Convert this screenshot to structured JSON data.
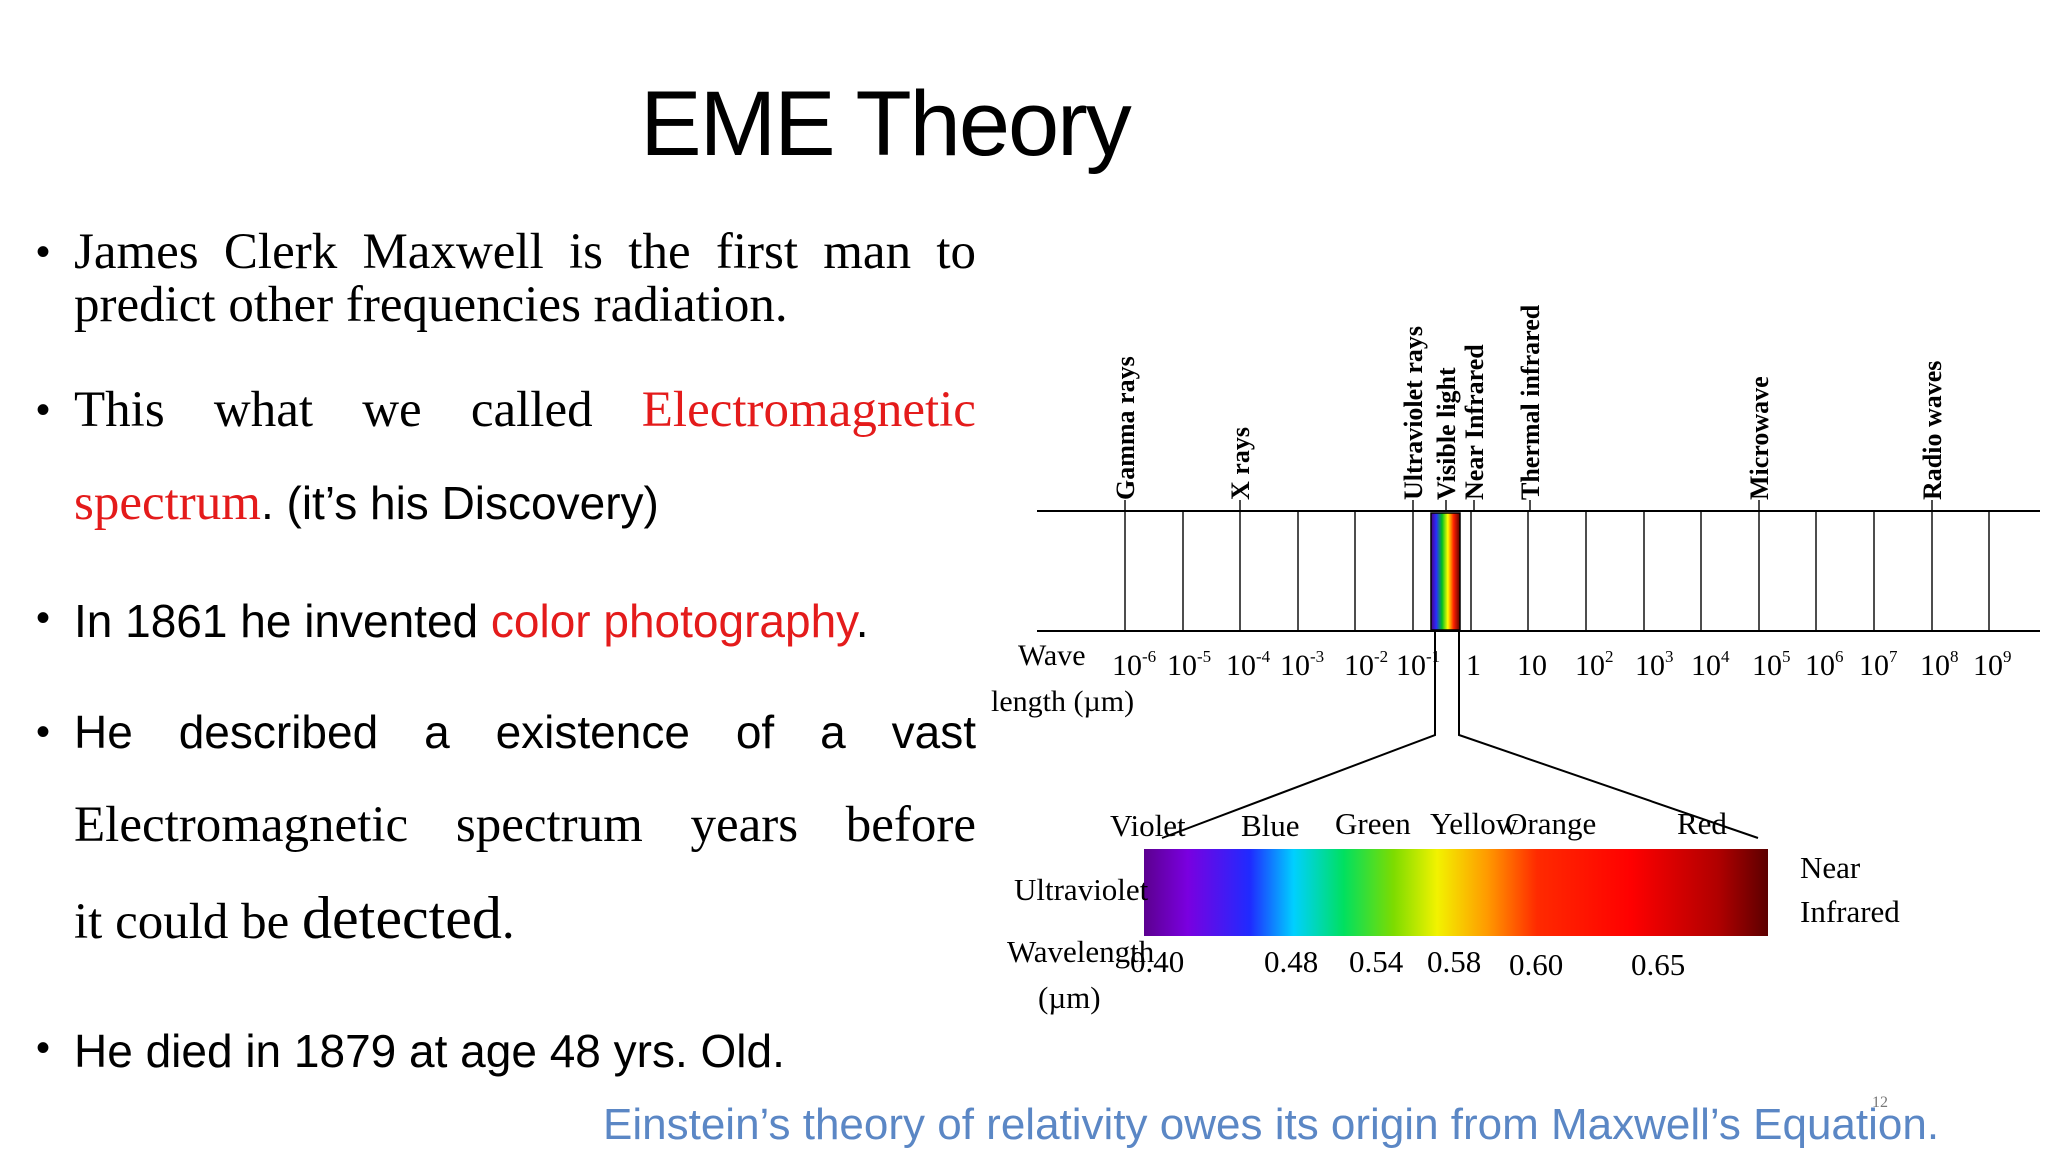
{
  "slide": {
    "title": "EME Theory",
    "page_number": "12",
    "footer": "Einstein’s theory of relativity owes its origin from Maxwell’s Equation."
  },
  "bullets": {
    "b1_line1": "James Clerk Maxwell is the first man to",
    "b1_line2": "predict other frequencies radiation.",
    "b2_pre": "This what we called",
    "b2_red1": "Electromagnetic",
    "b2_red2": "spectrum",
    "b2_post": ". (it’s his Discovery)",
    "b3_pre": "In 1861 he invented",
    "b3_red": "color photography",
    "b3_post": ".",
    "b4_line1": "He described a existence of a vast",
    "b4_line2": "Electromagnetic spectrum years before",
    "b4_line3a": "it could be",
    "b4_line3b": "detected",
    "b4_line3c": ".",
    "b5": "He died in 1879 at age 48 yrs. Old."
  },
  "diagram": {
    "bands": [
      "Gamma rays",
      "X rays",
      "Ultraviolet rays",
      "Visible light",
      "Near Infrared",
      "Thermal infrared",
      "Microwave",
      "Radio waves"
    ],
    "wave_label_1": "Wave",
    "wave_label_2": "length (µm)",
    "ticks": [
      {
        "base": "10",
        "exp": "-6"
      },
      {
        "base": "10",
        "exp": "-5"
      },
      {
        "base": "10",
        "exp": "-4"
      },
      {
        "base": "10",
        "exp": "-3"
      },
      {
        "base": "10",
        "exp": "-2"
      },
      {
        "base": "10",
        "exp": "-1"
      },
      {
        "base": "1",
        "exp": ""
      },
      {
        "base": "10",
        "exp": ""
      },
      {
        "base": "10",
        "exp": "2"
      },
      {
        "base": "10",
        "exp": "3"
      },
      {
        "base": "10",
        "exp": "4"
      },
      {
        "base": "10",
        "exp": "5"
      },
      {
        "base": "10",
        "exp": "6"
      },
      {
        "base": "10",
        "exp": "7"
      },
      {
        "base": "10",
        "exp": "8"
      },
      {
        "base": "10",
        "exp": "9"
      }
    ],
    "colors": [
      "Violet",
      "Blue",
      "Green",
      "Yellow",
      "Orange",
      "Red"
    ],
    "ultraviolet": "Ultraviolet",
    "near_infrared_1": "Near",
    "near_infrared_2": "Infrared",
    "wavelength_1": "Wavelength",
    "wavelength_2": "(µm)",
    "visible_values": [
      "0.40",
      "0.48",
      "0.54",
      "0.58",
      "0.60",
      "0.65"
    ]
  }
}
